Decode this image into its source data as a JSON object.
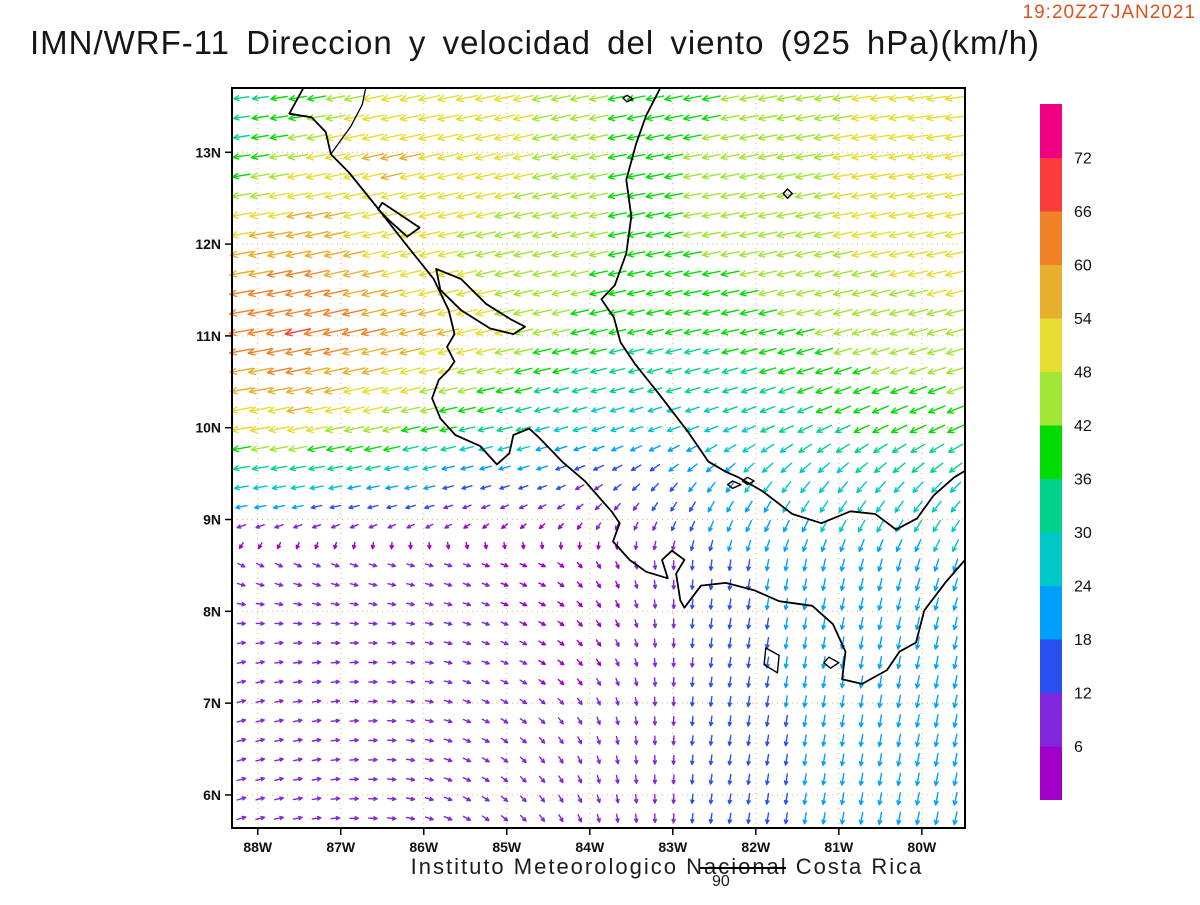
{
  "header": {
    "title": "IMN/WRF-11 Direccion y velocidad del viento (925 hPa)(km/h)",
    "timestamp": "19:20Z27JAN2021"
  },
  "footer": {
    "caption": "Instituto Meteorologico Nacional Costa Rica",
    "note": "90"
  },
  "colors": {
    "timestamp": "#e0501e",
    "graticule": "#e2b36e",
    "coastline": "#000000",
    "frame": "#000000",
    "text": "#111111"
  },
  "chart_data": {
    "type": "vector_field",
    "title": "IMN/WRF-11 Direccion y velocidad del viento (925 hPa)(km/h)",
    "variable": "wind direction and speed",
    "level": "925 hPa",
    "units": "km/h",
    "time": "19:20Z27JAN2021",
    "source": "Instituto Meteorologico Nacional Costa Rica",
    "lon_ticks": [
      "88W",
      "87W",
      "86W",
      "85W",
      "84W",
      "83W",
      "82W",
      "81W",
      "80W"
    ],
    "lat_ticks": [
      "13N",
      "12N",
      "11N",
      "10N",
      "9N",
      "8N",
      "7N",
      "6N"
    ],
    "lon_range": [
      -88.31,
      -79.48
    ],
    "lat_range": [
      5.64,
      13.7
    ],
    "speed_levels": [
      6,
      12,
      18,
      24,
      30,
      36,
      42,
      48,
      54,
      60,
      66,
      72
    ],
    "speed_colors": [
      "#a000c8",
      "#8228dc",
      "#2850f0",
      "#00a0ff",
      "#00c8c8",
      "#00d28c",
      "#00dc00",
      "#a0e632",
      "#e6dc32",
      "#e6af2d",
      "#f08228",
      "#fa3c3c",
      "#f00082"
    ],
    "grid": {
      "lons": [
        -88.6,
        -87.5,
        -86.5,
        -85.5,
        -84.5,
        -83.5,
        -82.5,
        -81.5,
        -80.5,
        -79.3
      ],
      "lats": [
        13.8,
        13.0,
        12.0,
        11.0,
        10.0,
        9.3,
        8.5,
        7.5,
        6.5,
        5.5
      ],
      "u": [
        [
          -26,
          -36,
          -48,
          -52,
          -46,
          -40,
          -40,
          -44,
          -48,
          -50
        ],
        [
          -30,
          -46,
          -54,
          -52,
          -46,
          -40,
          -42,
          -46,
          -50,
          -52
        ],
        [
          -52,
          -58,
          -50,
          -46,
          -44,
          -40,
          -42,
          -46,
          -48,
          -50
        ],
        [
          -62,
          -66,
          -58,
          -52,
          -42,
          -36,
          -36,
          -40,
          -44,
          -46
        ],
        [
          -48,
          -50,
          -44,
          -34,
          -28,
          -24,
          -26,
          -30,
          -34,
          -36
        ],
        [
          -26,
          -24,
          -20,
          -14,
          -10,
          -8,
          -12,
          -16,
          -18,
          -20
        ],
        [
          6,
          7,
          7,
          6,
          4,
          2,
          -2,
          -4,
          -6,
          -8
        ],
        [
          8,
          9,
          8,
          7,
          5,
          2,
          -2,
          -3,
          -4,
          -5
        ],
        [
          10,
          10,
          9,
          7,
          4,
          1,
          -2,
          -3,
          -4,
          -5
        ],
        [
          11,
          11,
          9,
          7,
          4,
          1,
          -2,
          -3,
          -4,
          -5
        ]
      ],
      "v": [
        [
          -2,
          -6,
          -10,
          -10,
          -10,
          -8,
          -8,
          -8,
          -6,
          -6
        ],
        [
          -4,
          -8,
          -12,
          -12,
          -10,
          -8,
          -8,
          -8,
          -8,
          -8
        ],
        [
          -8,
          -12,
          -12,
          -10,
          -10,
          -8,
          -8,
          -10,
          -10,
          -10
        ],
        [
          -10,
          -14,
          -14,
          -12,
          -10,
          -8,
          -8,
          -10,
          -12,
          -12
        ],
        [
          -8,
          -10,
          -10,
          -8,
          -8,
          -8,
          -10,
          -14,
          -16,
          -16
        ],
        [
          -4,
          -4,
          -4,
          -4,
          -4,
          -8,
          -18,
          -22,
          -22,
          -20
        ],
        [
          -3,
          -3,
          -2,
          -2,
          -2,
          -6,
          -16,
          -20,
          -22,
          -22
        ],
        [
          2,
          1,
          0,
          -2,
          -3,
          -6,
          -14,
          -19,
          -22,
          -24
        ],
        [
          3,
          2,
          0,
          -3,
          -5,
          -8,
          -14,
          -18,
          -22,
          -24
        ],
        [
          4,
          2,
          -1,
          -4,
          -6,
          -9,
          -14,
          -18,
          -22,
          -24
        ]
      ]
    },
    "map": {
      "coastlines": [
        [
          [
            -87.45,
            13.7
          ],
          [
            -87.62,
            13.42
          ],
          [
            -87.35,
            13.38
          ],
          [
            -87.18,
            13.22
          ],
          [
            -87.12,
            12.98
          ],
          [
            -86.9,
            12.78
          ],
          [
            -86.58,
            12.42
          ],
          [
            -86.2,
            11.98
          ],
          [
            -85.88,
            11.62
          ],
          [
            -85.7,
            11.28
          ],
          [
            -85.63,
            11.02
          ],
          [
            -85.72,
            10.88
          ],
          [
            -85.63,
            10.72
          ],
          [
            -85.7,
            10.63
          ],
          [
            -85.82,
            10.52
          ],
          [
            -85.9,
            10.32
          ],
          [
            -85.8,
            10.1
          ],
          [
            -85.62,
            9.92
          ],
          [
            -85.32,
            9.8
          ],
          [
            -85.12,
            9.6
          ],
          [
            -84.97,
            9.72
          ],
          [
            -84.92,
            9.92
          ],
          [
            -84.73,
            9.99
          ],
          [
            -84.62,
            9.9
          ],
          [
            -84.32,
            9.62
          ],
          [
            -84.06,
            9.42
          ],
          [
            -83.73,
            9.08
          ],
          [
            -83.64,
            8.96
          ],
          [
            -83.72,
            8.76
          ],
          [
            -83.52,
            8.56
          ],
          [
            -83.32,
            8.43
          ],
          [
            -83.06,
            8.36
          ],
          [
            -83.13,
            8.56
          ],
          [
            -83.01,
            8.66
          ],
          [
            -82.86,
            8.56
          ],
          [
            -82.96,
            8.41
          ],
          [
            -82.91,
            8.12
          ],
          [
            -82.86,
            8.04
          ],
          [
            -82.66,
            8.28
          ],
          [
            -82.36,
            8.31
          ],
          [
            -82.02,
            8.23
          ],
          [
            -81.72,
            8.11
          ],
          [
            -81.32,
            8.06
          ],
          [
            -81.07,
            7.86
          ],
          [
            -80.92,
            7.56
          ],
          [
            -80.96,
            7.26
          ],
          [
            -80.72,
            7.21
          ],
          [
            -80.42,
            7.36
          ],
          [
            -80.27,
            7.56
          ],
          [
            -80.07,
            7.66
          ],
          [
            -79.97,
            8.01
          ],
          [
            -79.72,
            8.31
          ],
          [
            -79.48,
            8.56
          ]
        ],
        [
          [
            -83.15,
            13.7
          ],
          [
            -83.32,
            13.4
          ],
          [
            -83.44,
            13.1
          ],
          [
            -83.56,
            12.7
          ],
          [
            -83.5,
            12.3
          ],
          [
            -83.56,
            11.9
          ],
          [
            -83.7,
            11.55
          ],
          [
            -83.86,
            11.4
          ],
          [
            -83.71,
            11.2
          ],
          [
            -83.63,
            10.93
          ],
          [
            -83.46,
            10.7
          ],
          [
            -83.16,
            10.36
          ],
          [
            -82.82,
            9.96
          ],
          [
            -82.57,
            9.63
          ],
          [
            -82.36,
            9.52
          ],
          [
            -82.21,
            9.46
          ],
          [
            -81.92,
            9.31
          ],
          [
            -81.56,
            9.06
          ],
          [
            -81.21,
            8.96
          ],
          [
            -80.86,
            9.09
          ],
          [
            -80.56,
            9.06
          ],
          [
            -80.31,
            8.89
          ],
          [
            -80.06,
            9.01
          ],
          [
            -79.86,
            9.26
          ],
          [
            -79.61,
            9.46
          ],
          [
            -79.48,
            9.53
          ]
        ]
      ],
      "borders": [
        [
          [
            -87.12,
            12.98
          ],
          [
            -86.88,
            13.28
          ],
          [
            -86.74,
            13.52
          ],
          [
            -86.7,
            13.7
          ]
        ]
      ],
      "lakes": [
        [
          [
            -85.85,
            11.73
          ],
          [
            -85.55,
            11.62
          ],
          [
            -85.25,
            11.35
          ],
          [
            -84.95,
            11.18
          ],
          [
            -84.78,
            11.1
          ],
          [
            -84.92,
            11.02
          ],
          [
            -85.2,
            11.08
          ],
          [
            -85.55,
            11.28
          ],
          [
            -85.8,
            11.5
          ],
          [
            -85.85,
            11.73
          ]
        ],
        [
          [
            -86.5,
            12.45
          ],
          [
            -86.25,
            12.3
          ],
          [
            -86.05,
            12.18
          ],
          [
            -86.2,
            12.08
          ],
          [
            -86.42,
            12.26
          ],
          [
            -86.55,
            12.38
          ],
          [
            -86.5,
            12.45
          ]
        ]
      ],
      "islands": [
        [
          [
            -81.62,
            12.6
          ],
          [
            -81.56,
            12.55
          ],
          [
            -81.62,
            12.5
          ],
          [
            -81.67,
            12.55
          ],
          [
            -81.62,
            12.6
          ]
        ],
        [
          [
            -83.55,
            13.62
          ],
          [
            -83.48,
            13.58
          ],
          [
            -83.55,
            13.55
          ],
          [
            -83.6,
            13.59
          ],
          [
            -83.55,
            13.62
          ]
        ],
        [
          [
            -81.88,
            7.6
          ],
          [
            -81.72,
            7.52
          ],
          [
            -81.74,
            7.33
          ],
          [
            -81.9,
            7.42
          ],
          [
            -81.88,
            7.6
          ]
        ],
        [
          [
            -81.12,
            7.5
          ],
          [
            -81.0,
            7.44
          ],
          [
            -81.1,
            7.38
          ],
          [
            -81.18,
            7.44
          ],
          [
            -81.12,
            7.5
          ]
        ],
        [
          [
            -82.28,
            9.42
          ],
          [
            -82.18,
            9.38
          ],
          [
            -82.28,
            9.34
          ],
          [
            -82.34,
            9.38
          ],
          [
            -82.28,
            9.42
          ]
        ],
        [
          [
            -82.1,
            9.46
          ],
          [
            -82.02,
            9.42
          ],
          [
            -82.1,
            9.38
          ],
          [
            -82.16,
            9.42
          ],
          [
            -82.1,
            9.46
          ]
        ]
      ]
    }
  }
}
